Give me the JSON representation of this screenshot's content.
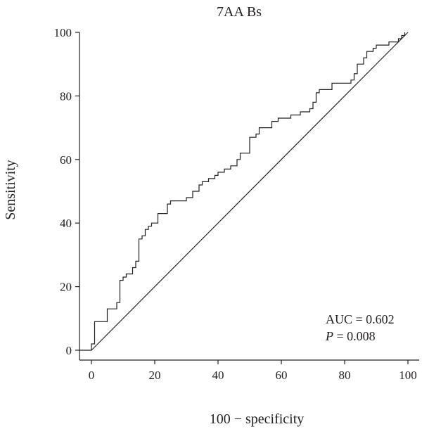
{
  "chart_data": {
    "type": "line",
    "title": "7AA Bs",
    "xlabel": "100 − specificity",
    "ylabel": "Sensitivity",
    "xlim": [
      0,
      100
    ],
    "ylim": [
      0,
      100
    ],
    "x_ticks": [
      "0",
      "20",
      "40",
      "60",
      "80",
      "100"
    ],
    "y_ticks": [
      "0",
      "20",
      "40",
      "60",
      "80",
      "100"
    ],
    "grid": false,
    "series": [
      {
        "kind": "roc-step",
        "x": [
          0,
          0,
          1,
          1,
          5,
          5,
          8,
          8,
          9,
          9,
          10,
          10,
          11,
          11,
          13,
          13,
          14,
          14,
          15,
          15,
          16,
          16,
          17,
          17,
          18,
          18,
          19,
          19,
          21,
          21,
          24,
          24,
          25,
          25,
          30,
          30,
          32,
          32,
          34,
          34,
          35,
          35,
          37,
          37,
          39,
          39,
          40,
          40,
          42,
          42,
          44,
          44,
          46,
          46,
          47,
          47,
          48,
          48,
          50,
          50,
          52,
          52,
          53,
          53,
          57,
          57,
          59,
          59,
          63,
          63,
          66,
          66,
          69,
          69,
          70,
          70,
          71,
          71,
          72,
          72,
          73,
          73,
          76,
          76,
          79,
          79,
          82,
          82,
          83,
          83,
          84,
          84,
          85,
          85,
          86,
          86,
          87,
          87,
          89,
          89,
          90,
          90,
          92,
          92,
          94,
          94,
          97,
          97,
          98,
          98,
          99,
          99
        ],
        "y": [
          0,
          2,
          2,
          9,
          9,
          13,
          13,
          15,
          15,
          22,
          22,
          23,
          23,
          24,
          24,
          26,
          26,
          28,
          28,
          35,
          35,
          36,
          36,
          38,
          38,
          39,
          39,
          40,
          40,
          43,
          43,
          46,
          46,
          47,
          47,
          48,
          48,
          50,
          50,
          52,
          52,
          53,
          53,
          54,
          54,
          55,
          55,
          56,
          56,
          57,
          57,
          58,
          58,
          60,
          60,
          62,
          62,
          62,
          62,
          67,
          67,
          68,
          68,
          70,
          70,
          72,
          72,
          73,
          73,
          74,
          74,
          75,
          75,
          76,
          76,
          78,
          78,
          81,
          81,
          82,
          82,
          82,
          82,
          84,
          84,
          84,
          84,
          85,
          85,
          87,
          87,
          90,
          90,
          90,
          90,
          92,
          92,
          94,
          94,
          95,
          95,
          96,
          96,
          96,
          96,
          97,
          97,
          98,
          98,
          99,
          99,
          100
        ]
      },
      {
        "kind": "reference-diagonal",
        "x": [
          0,
          100
        ],
        "y": [
          0,
          100
        ]
      }
    ],
    "annotations": {
      "auc": "AUC = 0.602",
      "p_label": "P",
      "p_value": " = 0.008"
    }
  }
}
